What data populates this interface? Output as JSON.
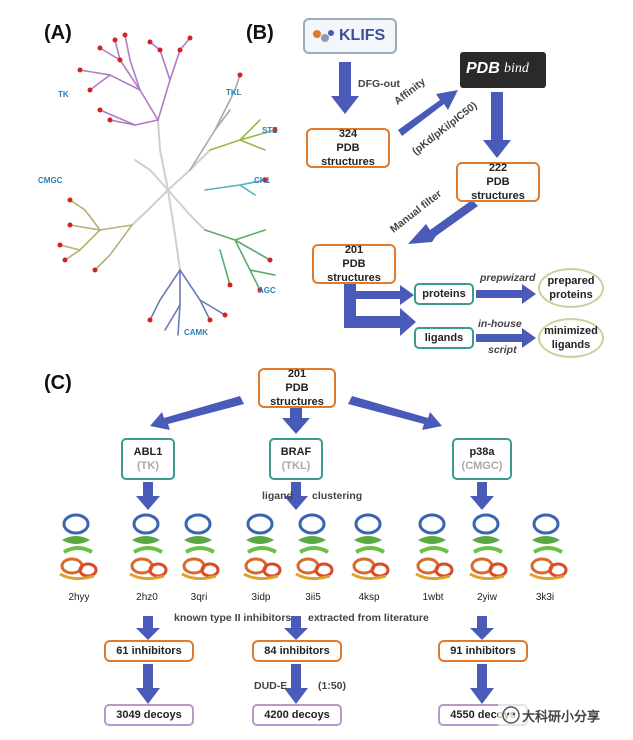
{
  "panels": {
    "a": "(A)",
    "b": "(B)",
    "c": "(C)"
  },
  "tree_labels": {
    "tk": "TK",
    "tkl": "TKL",
    "ste": "STE",
    "ck1": "CK1",
    "agc": "AGC",
    "camk": "CAMK",
    "cmgc": "CMGC"
  },
  "klifs": "KLIFS",
  "pdbbind": {
    "pdb": "PDB",
    "bind": "bind"
  },
  "b_steps": {
    "dfg": "DFG-out",
    "affinity": "Affinity",
    "affinity_units": "(pKd/pKi/pIC50)",
    "manual": "Manual filter",
    "box324_num": "324",
    "box324_label": "PDB structures",
    "box222_num": "222",
    "box222_label": "PDB structures",
    "box201_num": "201",
    "box201_label": "PDB structures",
    "proteins": "proteins",
    "ligands": "ligands",
    "prepwizard": "prepwizard",
    "inhouse": "in-house",
    "script": "script",
    "prepared_1": "prepared",
    "prepared_2": "proteins",
    "minimized_1": "minimized",
    "minimized_2": "ligands"
  },
  "c_top": {
    "num": "201",
    "label": "PDB structures"
  },
  "targets": [
    {
      "name": "ABL1",
      "family": "(TK)",
      "inhibitors": "61 inhibitors",
      "decoys": "3049 decoys",
      "pdbs": [
        "2hyy",
        "2hz0",
        "3qri"
      ]
    },
    {
      "name": "BRAF",
      "family": "(TKL)",
      "inhibitors": "84 inhibitors",
      "decoys": "4200 decoys",
      "pdbs": [
        "3idp",
        "3ii5",
        "4ksp"
      ]
    },
    {
      "name": "p38a",
      "family": "(CMGC)",
      "inhibitors": "91 inhibitors",
      "decoys": "4550 decoys",
      "pdbs": [
        "1wbt",
        "2yiw",
        "3k3i"
      ]
    }
  ],
  "c_notes": {
    "ligand": "ligand",
    "clustering": "clustering",
    "known": "known type II inhibitors",
    "extracted": "extracted from literature",
    "dude": "DUD-E",
    "ratio": "(1:50)"
  },
  "watermark": "大科研小分享",
  "colors": {
    "arrow": "#4a5ab8",
    "orange": "#e07a2c",
    "teal": "#3a9b8e",
    "purple": "#b79acb",
    "tree_tk": "#b07cc6",
    "tree_agc": "#5aaa6a",
    "tree_camk": "#6a7ab8",
    "tree_cmgc": "#b8b070",
    "tree_ste": "#9ab84a",
    "tree_ck1": "#5ab0c0",
    "dot": "#d42020"
  }
}
